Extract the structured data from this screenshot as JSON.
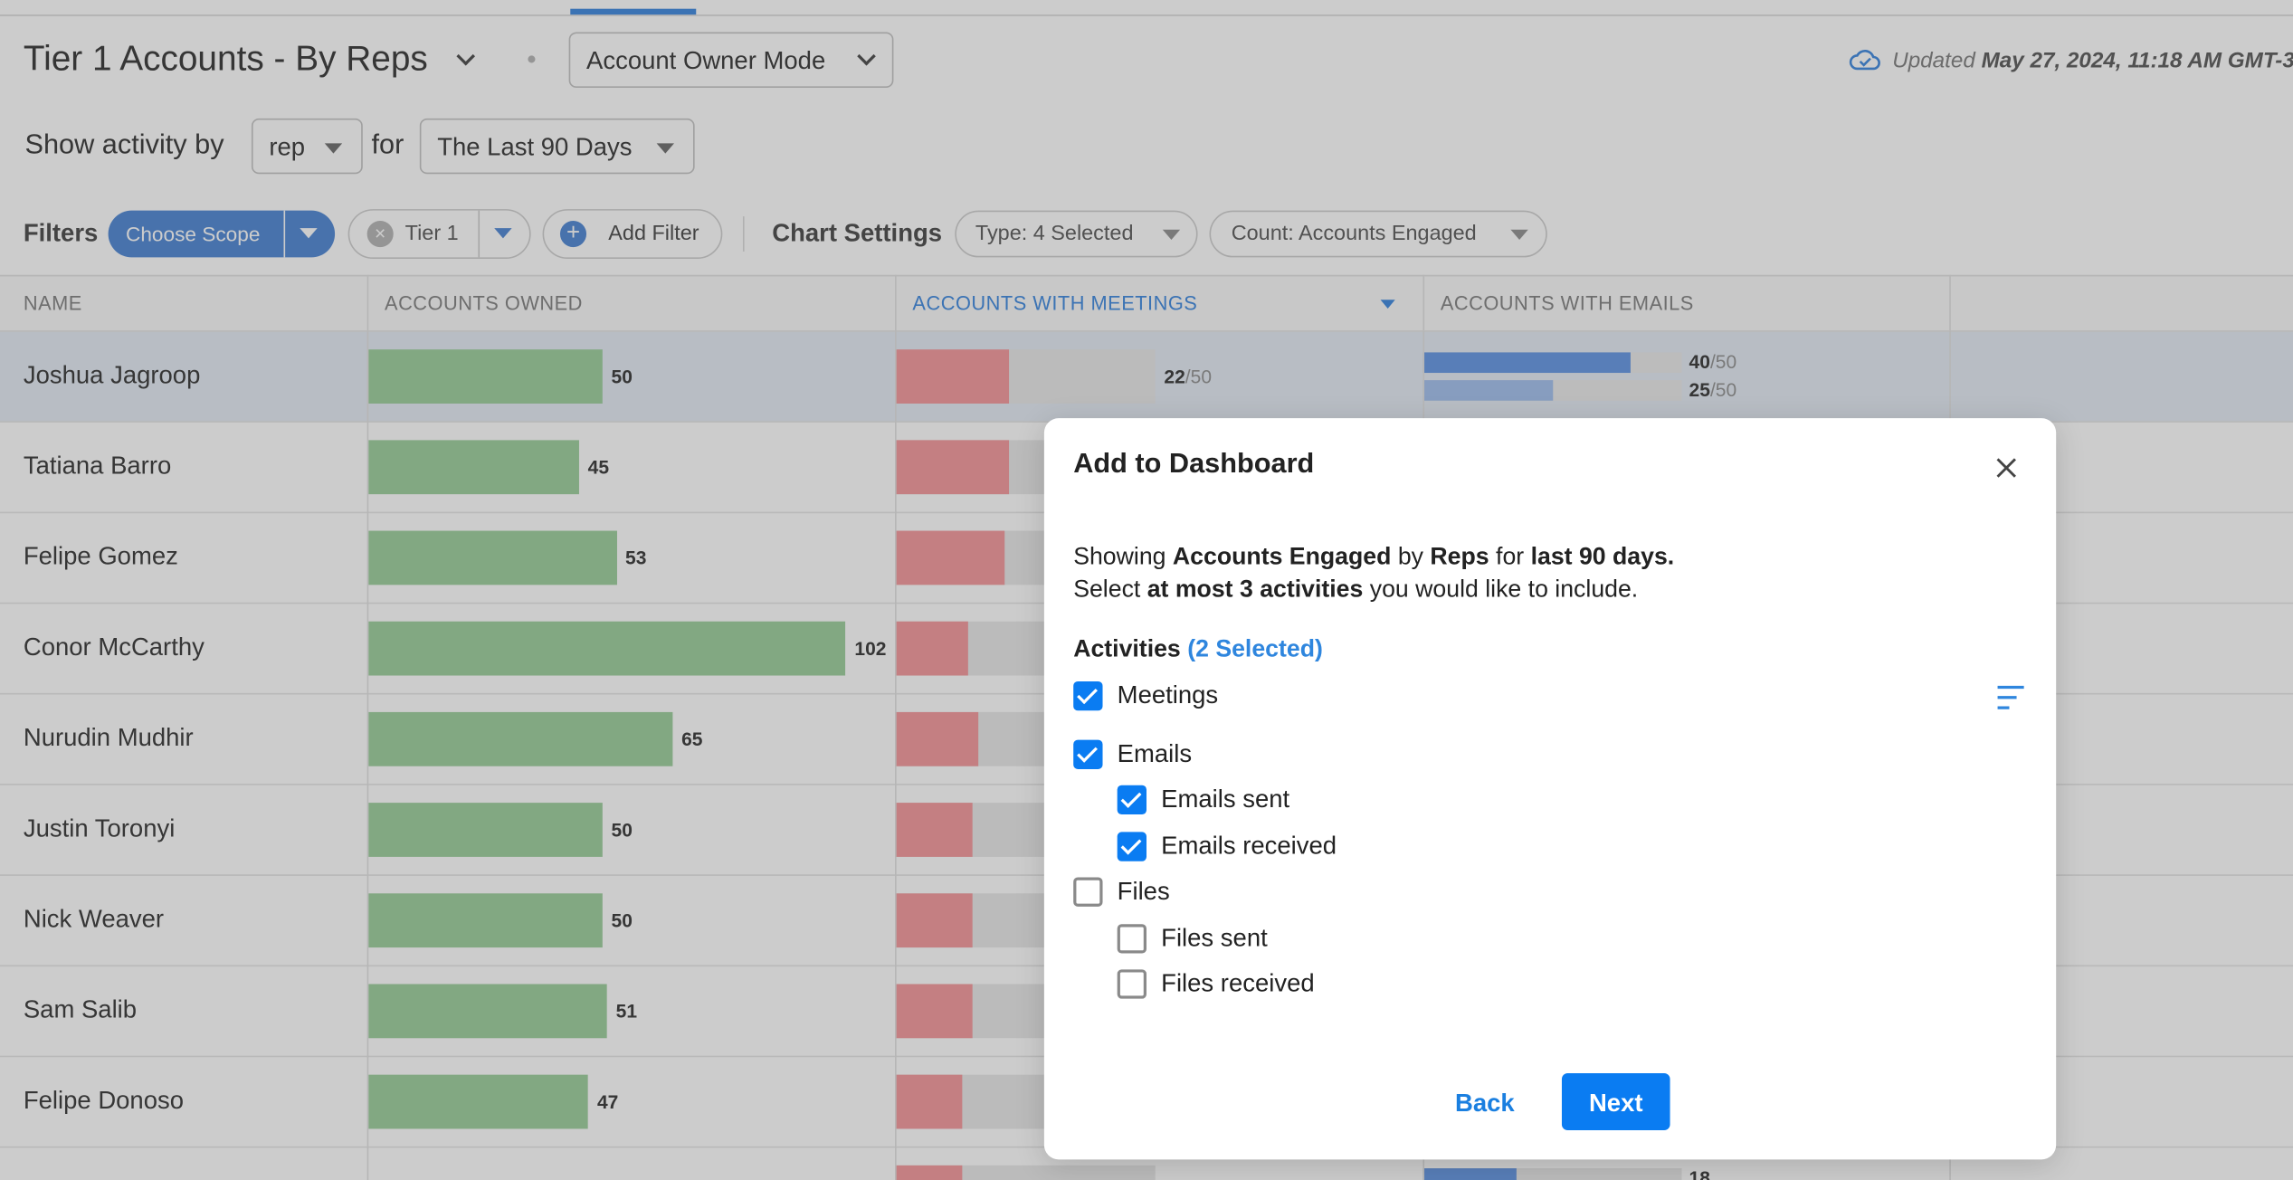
{
  "header": {
    "title": "Tier 1 Accounts - By Reps",
    "mode": "Account Owner Mode",
    "updated_prefix": "Updated",
    "updated": "May 27, 2024, 11:18 AM GMT-3"
  },
  "activity": {
    "label": "Show activity by",
    "by": "rep",
    "for": "for",
    "period": "The Last 90 Days"
  },
  "filters": {
    "label": "Filters",
    "scope": "Choose Scope",
    "tier": "Tier 1",
    "add": "Add Filter",
    "settings_label": "Chart Settings",
    "type": "Type: 4 Selected",
    "count": "Count: Accounts Engaged"
  },
  "table": {
    "columns": [
      "NAME",
      "ACCOUNTS OWNED",
      "ACCOUNTS WITH MEETINGS",
      "ACCOUNTS WITH EMAILS"
    ],
    "rows": [
      {
        "name": "Joshua Jagroop",
        "owned": 50,
        "meetings": 22,
        "meetings_total": 50,
        "emails": [
          40,
          25
        ],
        "emails_total": 50
      },
      {
        "name": "Tatiana Barro",
        "owned": 45,
        "meetings": 22
      },
      {
        "name": "Felipe Gomez",
        "owned": 53,
        "meetings": 21
      },
      {
        "name": "Conor McCarthy",
        "owned": 102,
        "meetings": 14
      },
      {
        "name": "Nurudin Mudhir",
        "owned": 65,
        "meetings": 16
      },
      {
        "name": "Justin Toronyi",
        "owned": 50,
        "meetings": 15
      },
      {
        "name": "Nick Weaver",
        "owned": 50,
        "meetings": 15
      },
      {
        "name": "Sam Salib",
        "owned": 51,
        "meetings": 15
      },
      {
        "name": "Felipe Donoso",
        "owned": 47,
        "meetings": 13
      },
      {
        "meetings": 13,
        "emails": [
          18
        ]
      }
    ]
  },
  "modal": {
    "title": "Add to Dashboard",
    "line1": [
      "Showing ",
      "Accounts Engaged",
      " by ",
      "Reps",
      " for ",
      "last 90 days."
    ],
    "line2": [
      "Select ",
      "at most 3 activities",
      " you would like to include."
    ],
    "activities_label": "Activities",
    "selected": "(2 Selected)",
    "items": [
      {
        "label": "Meetings",
        "checked": true,
        "level": 0
      },
      {
        "label": "Emails",
        "checked": true,
        "level": 0
      },
      {
        "label": "Emails sent",
        "checked": true,
        "level": 1
      },
      {
        "label": "Emails received",
        "checked": true,
        "level": 1
      },
      {
        "label": "Files",
        "checked": false,
        "level": 0
      },
      {
        "label": "Files sent",
        "checked": false,
        "level": 1
      },
      {
        "label": "Files received",
        "checked": false,
        "level": 1
      }
    ],
    "back": "Back",
    "next": "Next"
  }
}
